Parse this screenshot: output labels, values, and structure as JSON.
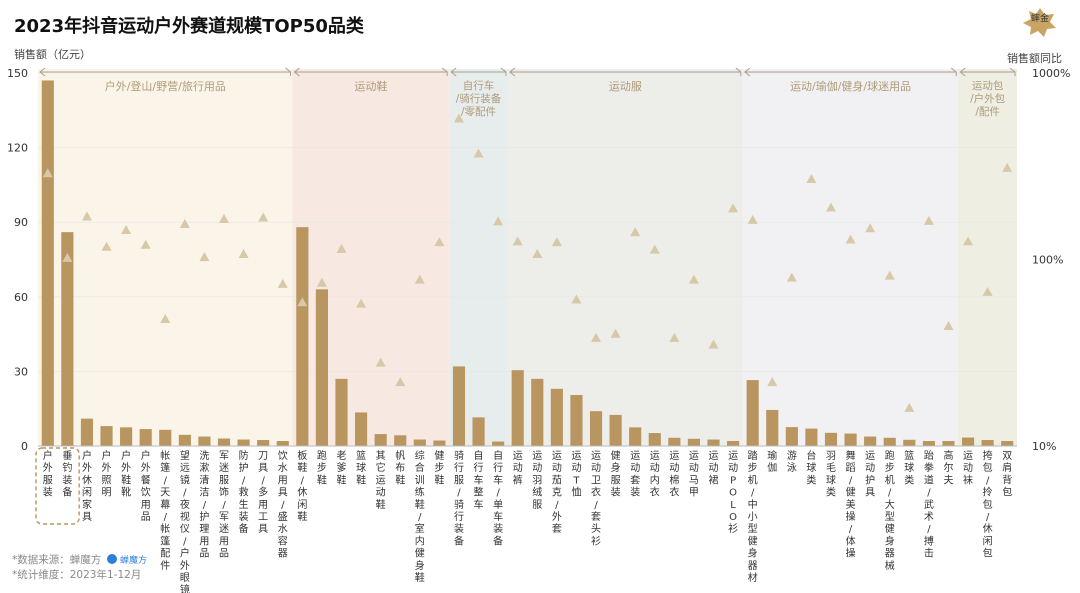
{
  "title": "2023年抖音运动户外赛道规模TOP50品类",
  "y_left_label": "销售额（亿元）",
  "y_right_label": "销售额同比",
  "footer": {
    "source": "*数据来源：蝉魔方",
    "source_logo_text": "蝉魔方",
    "period": "*统计维度：2023年1-12月"
  },
  "logo_text": "蟀金",
  "colors": {
    "bar": "#B9955F",
    "marker": "#D7C8A8",
    "groups": [
      "#FBF4E8",
      "#F7E8E2",
      "#E7EDEC",
      "#EDEDEA",
      "#F1F1F3",
      "#EEEEE2"
    ]
  },
  "chart_data": {
    "type": "bar",
    "y_left": {
      "ticks": [
        0,
        30,
        60,
        90,
        120,
        150
      ],
      "ylim": [
        0,
        150
      ]
    },
    "y_right": {
      "scale": "log",
      "ticks": [
        "10%",
        "100%",
        "1000%"
      ],
      "range": [
        10,
        1000
      ]
    },
    "groups": [
      {
        "label": "户外/登山/野营/旅行用品",
        "start": 0,
        "end": 12
      },
      {
        "label": "运动鞋",
        "start": 13,
        "end": 20
      },
      {
        "label": "自行车/骑行装备/零配件",
        "start": 21,
        "end": 23
      },
      {
        "label": "运动服",
        "start": 24,
        "end": 35
      },
      {
        "label": "运动/瑜伽/健身/球迷用品",
        "start": 36,
        "end": 46
      },
      {
        "label": "运动包/户外包/配件",
        "start": 47,
        "end": 49
      }
    ],
    "highlight_range": [
      0,
      1
    ],
    "categories": [
      "户外服装",
      "垂钓装备",
      "户外休闲家具",
      "户外照明",
      "户外鞋靴",
      "户外餐饮用品",
      "帐篷/天幕/帐篷配件",
      "望远镜/夜视仪/户外眼镜",
      "洗漱清洁/护理用品",
      "军迷服饰/军迷用品",
      "防护/救生装备",
      "刀具/多用工具",
      "饮水用具/盛水容器",
      "板鞋/休闲鞋",
      "跑步鞋",
      "老爹鞋",
      "篮球鞋",
      "其它运动鞋",
      "帆布鞋",
      "综合训练鞋/室内健身鞋",
      "健步鞋",
      "骑行服/骑行装备",
      "自行车整车",
      "自行车/单车装备",
      "运动裤",
      "运动羽绒服",
      "运动茄克/外套",
      "运动T恤",
      "运动卫衣/套头衫",
      "健身服装",
      "运动套装",
      "运动内衣",
      "运动棉衣",
      "运动马甲",
      "运动裙",
      "运动POLO衫",
      "踏步机/中小型健身器材",
      "瑜伽",
      "游泳",
      "台球类",
      "羽毛球类",
      "舞蹈/健美操/体操",
      "运动护具",
      "跑步机/大型健身器械",
      "篮球类",
      "跆拳道/武术/搏击",
      "高尔夫",
      "运动袜",
      "挎包/拎包/休闲包",
      "双肩背包"
    ],
    "values": [
      147,
      86,
      11,
      8,
      7.5,
      6.8,
      6.5,
      4.5,
      3.8,
      3,
      2.6,
      2.4,
      2,
      88,
      63,
      27,
      13.5,
      4.8,
      4.3,
      2.6,
      2.2,
      32,
      11.5,
      1.8,
      30.5,
      27,
      23,
      20.5,
      14,
      12.5,
      7.5,
      5.2,
      3.3,
      2.9,
      2.6,
      2,
      26.5,
      14.5,
      7.6,
      7,
      5.3,
      5,
      3.8,
      3.3,
      2.5,
      2,
      2,
      3.4,
      2.4,
      2
    ],
    "growth_pct": [
      290,
      102,
      170,
      117,
      144,
      120,
      48,
      155,
      103,
      165,
      107,
      168,
      74,
      59,
      75,
      114,
      58,
      28,
      22,
      78,
      124,
      570,
      370,
      160,
      125,
      107,
      124,
      61,
      38,
      40,
      140,
      113,
      38,
      78,
      35,
      188,
      163,
      22,
      80,
      270,
      190,
      128,
      147,
      82,
      16,
      161,
      44,
      125,
      67,
      310
    ]
  }
}
